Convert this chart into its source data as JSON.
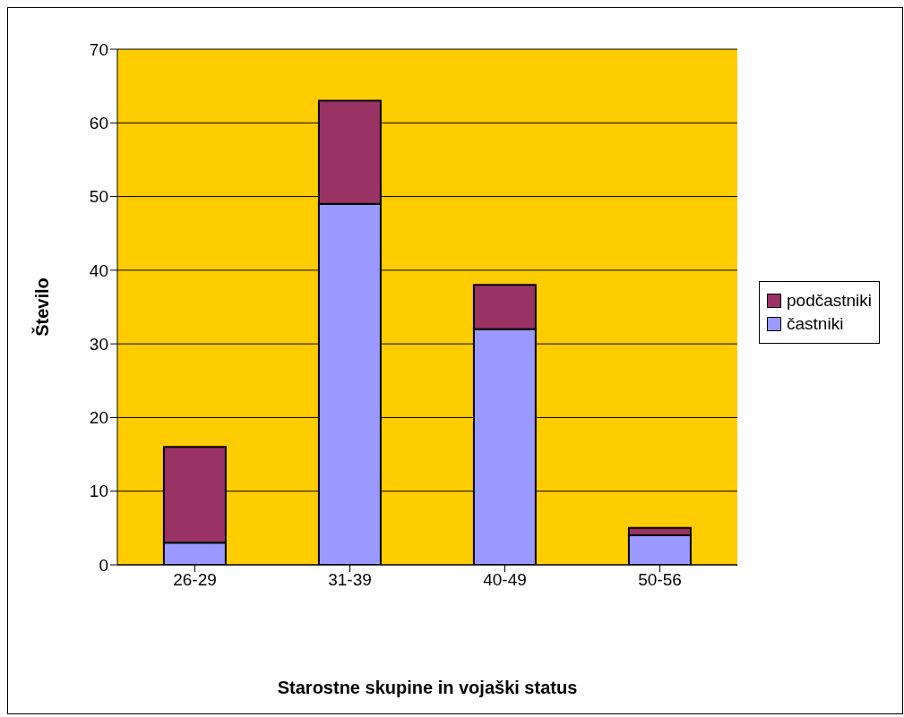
{
  "chart_data": {
    "type": "bar",
    "stacked": true,
    "xlabel": "Starostne skupine in vojaški status",
    "ylabel": "Število",
    "categories": [
      "26-29",
      "31-39",
      "40-49",
      "50-56"
    ],
    "series": [
      {
        "name": "častniki",
        "color": "#9999ff",
        "values": [
          3,
          49,
          32,
          4
        ]
      },
      {
        "name": "podčastniki",
        "color": "#993366",
        "values": [
          13,
          14,
          6,
          1
        ]
      }
    ],
    "ylim": [
      0,
      70
    ],
    "yticks": [
      0,
      10,
      20,
      30,
      40,
      50,
      60,
      70
    ],
    "grid": "y",
    "legend": "right"
  }
}
